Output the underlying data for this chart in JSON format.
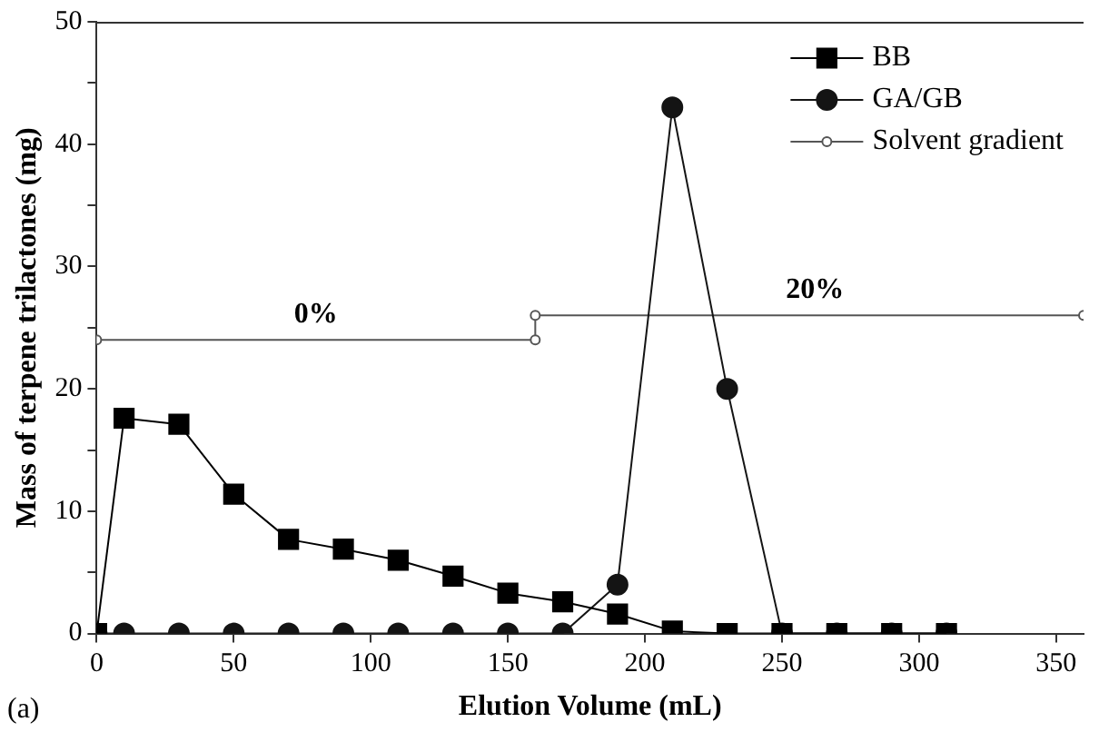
{
  "chart_data": {
    "type": "line",
    "xlabel": "Elution Volume (mL)",
    "ylabel": "Mass of terpene trilactones (mg)",
    "xlim": [
      0,
      360
    ],
    "xticks": [
      0,
      50,
      100,
      150,
      200,
      250,
      300,
      350
    ],
    "ylim": [
      0,
      50
    ],
    "yticks": [
      0,
      {
        "value": 5,
        "label": null
      },
      10,
      {
        "value": 15,
        "label": null
      },
      20,
      {
        "value": 25,
        "label": null
      },
      30,
      {
        "value": 35,
        "label": null
      },
      40,
      {
        "value": 45,
        "label": null
      },
      50
    ],
    "grid": false,
    "legend": "top right",
    "line_style": "solid",
    "series": [
      {
        "name": "BB",
        "color": "#000000",
        "marker": "square",
        "x": [
          0,
          10,
          30,
          50,
          70,
          90,
          110,
          130,
          150,
          170,
          190,
          210,
          230,
          250,
          270,
          290,
          310
        ],
        "values": [
          0,
          17.6,
          17.1,
          11.4,
          7.7,
          6.9,
          6.0,
          4.7,
          3.3,
          2.6,
          1.6,
          0.2,
          0,
          0,
          0,
          0,
          0
        ]
      },
      {
        "name": "GA/GB",
        "color": "#141414",
        "marker": "circle",
        "x": [
          0,
          10,
          30,
          50,
          70,
          90,
          110,
          130,
          150,
          170,
          190,
          210,
          230,
          250,
          270,
          290,
          310
        ],
        "values": [
          0,
          0,
          0,
          0,
          0,
          0,
          0,
          0,
          0,
          0,
          4,
          43,
          20,
          0,
          0,
          0,
          0
        ]
      },
      {
        "name": "Solvent gradient",
        "color": "#555555",
        "marker": "circle",
        "x": [
          0,
          160,
          160,
          360
        ],
        "values": [
          24,
          24,
          26,
          26
        ]
      }
    ],
    "annotations": [
      {
        "text": "0%",
        "x": 80,
        "y": 24
      },
      {
        "text": "20%",
        "x": 262,
        "y": 26
      },
      "(a)"
    ]
  }
}
